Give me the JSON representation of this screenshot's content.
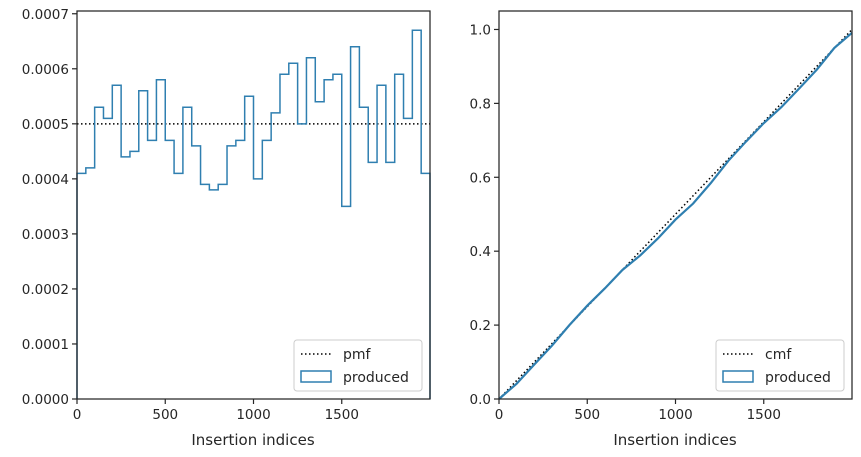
{
  "colors": {
    "hist": "#2f7fb0",
    "reference": "#000000",
    "axes": "#262626",
    "legend_border": "#cccccc"
  },
  "chart_data": [
    {
      "type": "step",
      "xlabel": "Insertion indices",
      "ylabel": "",
      "xlim": [
        0,
        2000
      ],
      "ylim": [
        0,
        0.000705
      ],
      "xticks": [
        0,
        500,
        1000,
        1500
      ],
      "xtick_labels": [
        "0",
        "500",
        "1000",
        "1500"
      ],
      "yticks": [
        0,
        0.0001,
        0.0002,
        0.0003,
        0.0004,
        0.0005,
        0.0006,
        0.0007
      ],
      "ytick_labels": [
        "0.0000",
        "0.0001",
        "0.0002",
        "0.0003",
        "0.0004",
        "0.0005",
        "0.0006",
        "0.0007"
      ],
      "bin_edges": [
        0,
        50,
        100,
        150,
        200,
        250,
        300,
        350,
        400,
        450,
        500,
        550,
        600,
        650,
        700,
        750,
        800,
        850,
        900,
        950,
        1000,
        1050,
        1100,
        1150,
        1200,
        1250,
        1300,
        1350,
        1400,
        1450,
        1500,
        1550,
        1600,
        1650,
        1700,
        1750,
        1800,
        1850,
        1900,
        1950,
        2000
      ],
      "series": [
        {
          "name": "pmf",
          "style": "dotted",
          "x": [
            0,
            2000
          ],
          "values": [
            0.0005,
            0.0005
          ]
        },
        {
          "name": "produced",
          "style": "step",
          "values": [
            0.00041,
            0.00042,
            0.00053,
            0.00051,
            0.00057,
            0.00044,
            0.00045,
            0.00056,
            0.00047,
            0.00058,
            0.00047,
            0.00041,
            0.00053,
            0.00046,
            0.00039,
            0.00038,
            0.00039,
            0.00046,
            0.00047,
            0.00055,
            0.0004,
            0.00047,
            0.00052,
            0.00059,
            0.00061,
            0.0005,
            0.00062,
            0.00054,
            0.00058,
            0.00059,
            0.00035,
            0.00064,
            0.00053,
            0.00043,
            0.00057,
            0.00043,
            0.00059,
            0.00051,
            0.00067,
            0.00041
          ]
        }
      ],
      "legend": {
        "position": "lower-right",
        "entries": [
          "pmf",
          "produced"
        ]
      }
    },
    {
      "type": "line",
      "xlabel": "Insertion indices",
      "ylabel": "",
      "xlim": [
        0,
        2000
      ],
      "ylim": [
        0,
        1.05
      ],
      "xticks": [
        0,
        500,
        1000,
        1500
      ],
      "xtick_labels": [
        "0",
        "500",
        "1000",
        "1500"
      ],
      "yticks": [
        0,
        0.2,
        0.4,
        0.6,
        0.8,
        1.0
      ],
      "ytick_labels": [
        "0.0",
        "0.2",
        "0.4",
        "0.6",
        "0.8",
        "1.0"
      ],
      "series": [
        {
          "name": "cmf",
          "style": "dotted",
          "x": [
            0,
            2000
          ],
          "values": [
            0,
            1
          ]
        },
        {
          "name": "produced",
          "style": "step",
          "x": [
            0,
            100,
            200,
            300,
            400,
            500,
            600,
            700,
            800,
            900,
            1000,
            1100,
            1200,
            1300,
            1400,
            1500,
            1600,
            1700,
            1800,
            1900,
            2000
          ],
          "values": [
            0,
            0.0415,
            0.0935,
            0.1445,
            0.2005,
            0.2525,
            0.2995,
            0.3495,
            0.3885,
            0.4345,
            0.4855,
            0.529,
            0.5845,
            0.645,
            0.697,
            0.7465,
            0.79,
            0.84,
            0.891,
            0.95,
            0.991
          ]
        }
      ],
      "legend": {
        "position": "lower-right",
        "entries": [
          "cmf",
          "produced"
        ]
      }
    }
  ]
}
